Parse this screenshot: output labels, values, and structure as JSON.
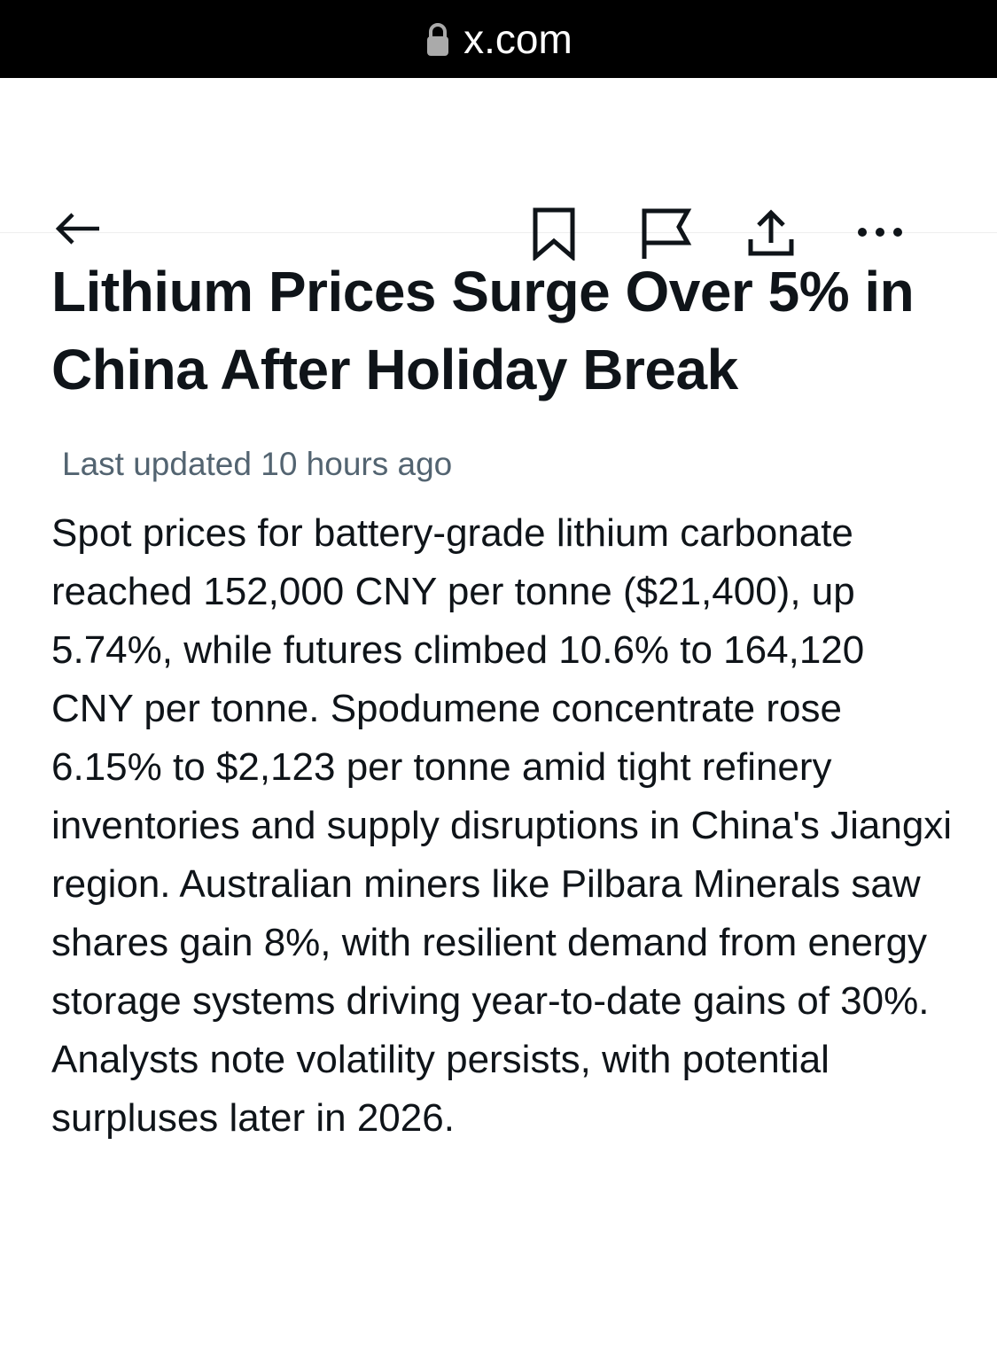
{
  "status_bar": {
    "url": "x.com"
  },
  "article": {
    "title": "Lithium Prices Surge Over 5% in China After Holiday Break",
    "updated": "Last updated 10 hours ago",
    "body": "Spot prices for battery-grade lithium carbonate reached 152,000 CNY per tonne ($21,400), up 5.74%, while futures climbed 10.6% to 164,120 CNY per tonne. Spodumene concentrate rose 6.15% to $2,123 per tonne amid tight refinery inventories and supply disruptions in China's Jiangxi region. Australian miners like Pilbara Minerals saw shares gain 8%, with resilient demand from energy storage systems driving year-to-date gains of 30%. Analysts note volatility persists, with potential surpluses later in 2026."
  }
}
